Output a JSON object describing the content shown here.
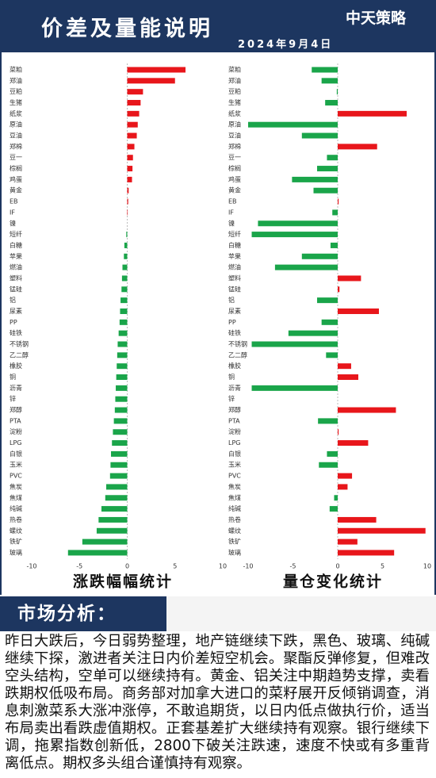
{
  "header": {
    "title": "价差及量能说明",
    "date": "2024年9月4日",
    "logo": "中天策略"
  },
  "chart_data": [
    {
      "type": "hbar",
      "title": "涨跌幅幅统计",
      "positive_color": "#e8161b",
      "negative_color": "#1aa54a",
      "categories": [
        "菜粕",
        "郑油",
        "豆粕",
        "生猪",
        "纸浆",
        "原油",
        "豆油",
        "郑棉",
        "豆一",
        "棕榈",
        "鸡蛋",
        "黄金",
        "EB",
        "IF",
        "镍",
        "短纤",
        "白糖",
        "苹果",
        "燃油",
        "塑料",
        "锰硅",
        "铝",
        "尿素",
        "PP",
        "硅铁",
        "不锈钢",
        "乙二醇",
        "橡胶",
        "铜",
        "沥青",
        "锌",
        "郑醇",
        "PTA",
        "淀粉",
        "LPG",
        "白银",
        "玉米",
        "PVC",
        "焦炭",
        "焦煤",
        "纯碱",
        "热卷",
        "螺纹",
        "铁矿",
        "玻璃"
      ],
      "values": [
        6.1,
        5.0,
        1.65,
        1.4,
        1.25,
        1.1,
        1.0,
        0.75,
        0.6,
        0.55,
        0.5,
        0.15,
        0.1,
        0.05,
        0,
        -0.1,
        -0.3,
        -0.35,
        -0.5,
        -0.55,
        -0.6,
        -0.7,
        -0.75,
        -0.8,
        -0.9,
        -1.0,
        -1.05,
        -1.1,
        -1.15,
        -1.2,
        -1.25,
        -1.3,
        -1.4,
        -1.5,
        -1.6,
        -1.7,
        -1.75,
        -1.8,
        -2.2,
        -2.3,
        -2.7,
        -3.0,
        -3.2,
        -4.7,
        -6.2
      ],
      "xlim": [
        -10,
        10
      ],
      "xticks": [
        -10,
        -5,
        0,
        5,
        10
      ]
    },
    {
      "type": "hbar",
      "title": "量仓变化统计",
      "positive_color": "#e8161b",
      "negative_color": "#1aa54a",
      "categories": [
        "菜粕",
        "郑油",
        "豆粕",
        "生猪",
        "纸浆",
        "原油",
        "豆油",
        "郑棉",
        "豆一",
        "棕榈",
        "鸡蛋",
        "黄金",
        "EB",
        "IF",
        "镍",
        "短纤",
        "白糖",
        "苹果",
        "燃油",
        "塑料",
        "锰硅",
        "铝",
        "尿素",
        "PP",
        "硅铁",
        "不锈钢",
        "乙二醇",
        "橡胶",
        "铜",
        "沥青",
        "锌",
        "郑醇",
        "PTA",
        "淀粉",
        "LPG",
        "白银",
        "玉米",
        "PVC",
        "焦炭",
        "焦煤",
        "纯碱",
        "热卷",
        "螺纹",
        "铁矿",
        "玻璃"
      ],
      "values": [
        -2.9,
        -1.8,
        -0.1,
        -1.4,
        7.7,
        -10,
        -4.0,
        4.4,
        -1.2,
        -2.3,
        -5.1,
        -2.7,
        0.1,
        -0.6,
        -8.9,
        -9.6,
        -0.8,
        -4.0,
        -7.0,
        2.6,
        0.2,
        -2.3,
        4.6,
        -1.8,
        -5.5,
        -9.6,
        -1.3,
        1.5,
        2.3,
        -9.6,
        0,
        6.5,
        -2.2,
        0.1,
        3.4,
        -1.2,
        -2.1,
        1.6,
        1.1,
        -0.4,
        -0.9,
        4.3,
        9.8,
        2.2,
        6.3
      ],
      "xlim": [
        -10,
        10
      ],
      "xticks": [
        -10,
        -5,
        0,
        5,
        10
      ]
    }
  ],
  "analysis": {
    "heading": "市场分析：",
    "text": "昨日大跌后，今日弱势整理，地产链继续下跌，黑色、玻璃、纯碱继续下探，激进者关注日内价差短空机会。聚酯反弹修复，但难改空头结构，空单可以继续持有。黄金、铝关注中期趋势支撑，卖看跌期权低吸布局。商务部对加拿大进口的菜籽展开反倾销调查，消息刺激菜系大涨冲涨停，不敢追期货，以日内低点做执行价，适当布局卖出看跌虚值期权。正套基差扩大继续持有观察。银行继续下调，拖累指数创新低，2800下破关注跌速，速度不快或有多重背离低点。期权多头组合谨慎持有观察。"
  }
}
